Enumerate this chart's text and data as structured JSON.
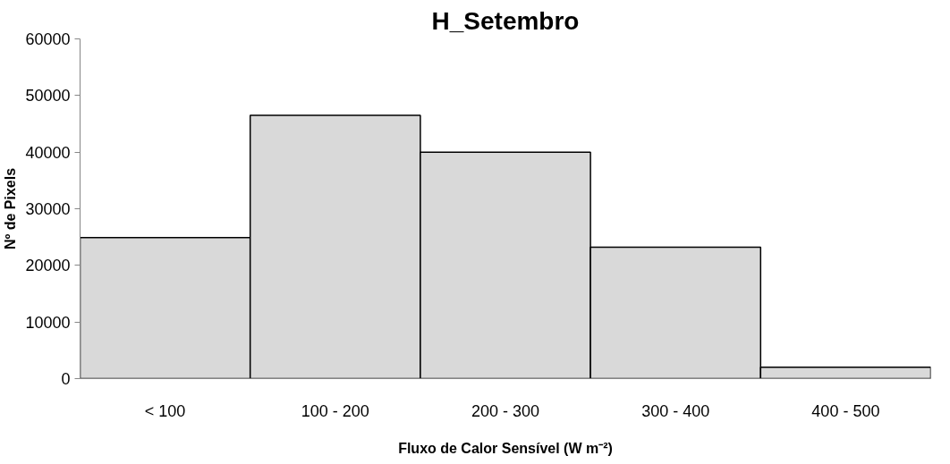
{
  "chart_data": {
    "type": "bar",
    "title": "H_Setembro",
    "xlabel": "Fluxo de Calor Sensível (W m⁻²)",
    "ylabel": "Nº de Pixels",
    "categories": [
      "< 100",
      "100 - 200",
      "200 - 300",
      "300 - 400",
      "400 - 500"
    ],
    "values": [
      24900,
      46500,
      40000,
      23200,
      2000
    ],
    "color": "#d9d9d9",
    "ylim": [
      0,
      60000
    ],
    "yticks": [
      0,
      10000,
      20000,
      30000,
      40000,
      50000,
      60000
    ],
    "grid": false
  }
}
